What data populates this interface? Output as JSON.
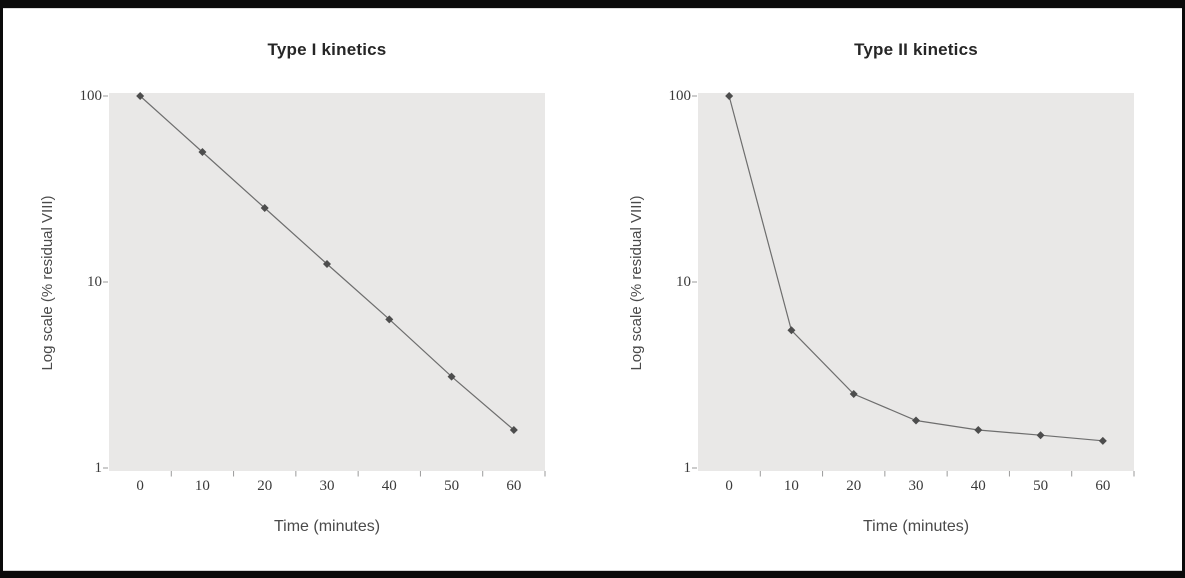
{
  "colors": {
    "frame": "#0a0a0a",
    "plot_background": "#e9e8e7",
    "line": "#6e6e6e",
    "marker": "#4d4d4d",
    "tick_mark": "#9a9a9a",
    "title_text": "#262626",
    "axis_text": "#4a4a4a"
  },
  "chart_data": [
    {
      "type": "line",
      "title": "Type I kinetics",
      "xlabel": "Time (minutes)",
      "ylabel": "Log scale (% residual VIII)",
      "x": [
        0,
        10,
        20,
        30,
        40,
        50,
        60
      ],
      "values": [
        100,
        50,
        25,
        12.5,
        6.3,
        3.1,
        1.6
      ],
      "yscale": "log",
      "ylim": [
        1,
        100
      ],
      "xticks": [
        0,
        10,
        20,
        30,
        40,
        50,
        60
      ],
      "yticks": [
        100,
        10,
        1
      ],
      "grid": false,
      "legend": "none",
      "marker": "diamond"
    },
    {
      "type": "line",
      "title": "Type II kinetics",
      "xlabel": "Time (minutes)",
      "ylabel": "Log scale (% residual VIII)",
      "x": [
        0,
        10,
        20,
        30,
        40,
        50,
        60
      ],
      "values": [
        100,
        5.5,
        2.5,
        1.8,
        1.6,
        1.5,
        1.4
      ],
      "yscale": "log",
      "ylim": [
        1,
        100
      ],
      "xticks": [
        0,
        10,
        20,
        30,
        40,
        50,
        60
      ],
      "yticks": [
        100,
        10,
        1
      ],
      "grid": false,
      "legend": "none",
      "marker": "diamond"
    }
  ]
}
